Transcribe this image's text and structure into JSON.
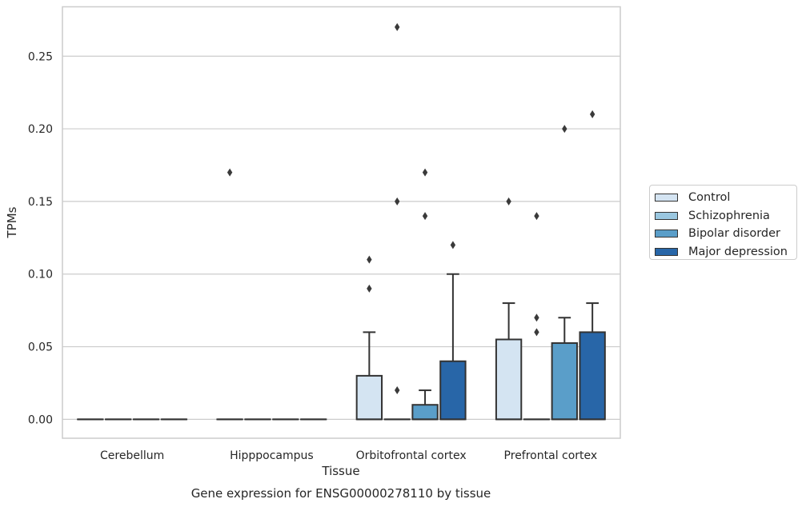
{
  "chart_data": {
    "type": "boxplot",
    "xlabel": "Tissue",
    "ylabel": "TPMs",
    "caption": "Gene expression for ENSG00000278110 by tissue",
    "categories": [
      "Cerebellum",
      "Hipppocampus",
      "Orbitofrontal cortex",
      "Prefrontal cortex"
    ],
    "y_ticks": [
      "0.00",
      "0.05",
      "0.10",
      "0.15",
      "0.20",
      "0.25"
    ],
    "ylim": [
      -0.013,
      0.284
    ],
    "grid": "horizontal",
    "legend_placement": "right",
    "series": [
      {
        "name": "Control",
        "color": "#d4e4f2",
        "boxes": [
          {
            "q1": 0,
            "median": 0,
            "q3": 0,
            "whisker_low": 0,
            "whisker_high": 0,
            "outliers": []
          },
          {
            "q1": 0,
            "median": 0,
            "q3": 0,
            "whisker_low": 0,
            "whisker_high": 0,
            "outliers": [
              0.17
            ]
          },
          {
            "q1": 0,
            "median": 0,
            "q3": 0.03,
            "whisker_low": 0,
            "whisker_high": 0.06,
            "outliers": [
              0.09,
              0.11
            ]
          },
          {
            "q1": 0,
            "median": 0,
            "q3": 0.055,
            "whisker_low": 0,
            "whisker_high": 0.08,
            "outliers": [
              0.15
            ]
          }
        ]
      },
      {
        "name": "Schizophrenia",
        "color": "#9ac7e0",
        "boxes": [
          {
            "q1": 0,
            "median": 0,
            "q3": 0,
            "whisker_low": 0,
            "whisker_high": 0,
            "outliers": []
          },
          {
            "q1": 0,
            "median": 0,
            "q3": 0,
            "whisker_low": 0,
            "whisker_high": 0,
            "outliers": []
          },
          {
            "q1": 0,
            "median": 0,
            "q3": 0,
            "whisker_low": 0,
            "whisker_high": 0,
            "outliers": [
              0.02,
              0.15,
              0.27
            ]
          },
          {
            "q1": 0,
            "median": 0,
            "q3": 0,
            "whisker_low": 0,
            "whisker_high": 0,
            "outliers": [
              0.06,
              0.07,
              0.14
            ]
          }
        ]
      },
      {
        "name": "Bipolar disorder",
        "color": "#5a9ec9",
        "boxes": [
          {
            "q1": 0,
            "median": 0,
            "q3": 0,
            "whisker_low": 0,
            "whisker_high": 0,
            "outliers": []
          },
          {
            "q1": 0,
            "median": 0,
            "q3": 0,
            "whisker_low": 0,
            "whisker_high": 0,
            "outliers": []
          },
          {
            "q1": 0,
            "median": 0,
            "q3": 0.01,
            "whisker_low": 0,
            "whisker_high": 0.02,
            "outliers": [
              0.14,
              0.17
            ]
          },
          {
            "q1": 0,
            "median": 0,
            "q3": 0.0525,
            "whisker_low": 0,
            "whisker_high": 0.07,
            "outliers": [
              0.2
            ]
          }
        ]
      },
      {
        "name": "Major depression",
        "color": "#2866a8",
        "boxes": [
          {
            "q1": 0,
            "median": 0,
            "q3": 0,
            "whisker_low": 0,
            "whisker_high": 0,
            "outliers": []
          },
          {
            "q1": 0,
            "median": 0,
            "q3": 0,
            "whisker_low": 0,
            "whisker_high": 0,
            "outliers": []
          },
          {
            "q1": 0,
            "median": 0,
            "q3": 0.04,
            "whisker_low": 0,
            "whisker_high": 0.1,
            "outliers": [
              0.12
            ]
          },
          {
            "q1": 0,
            "median": 0,
            "q3": 0.06,
            "whisker_low": 0,
            "whisker_high": 0.08,
            "outliers": [
              0.21
            ]
          }
        ]
      }
    ]
  }
}
